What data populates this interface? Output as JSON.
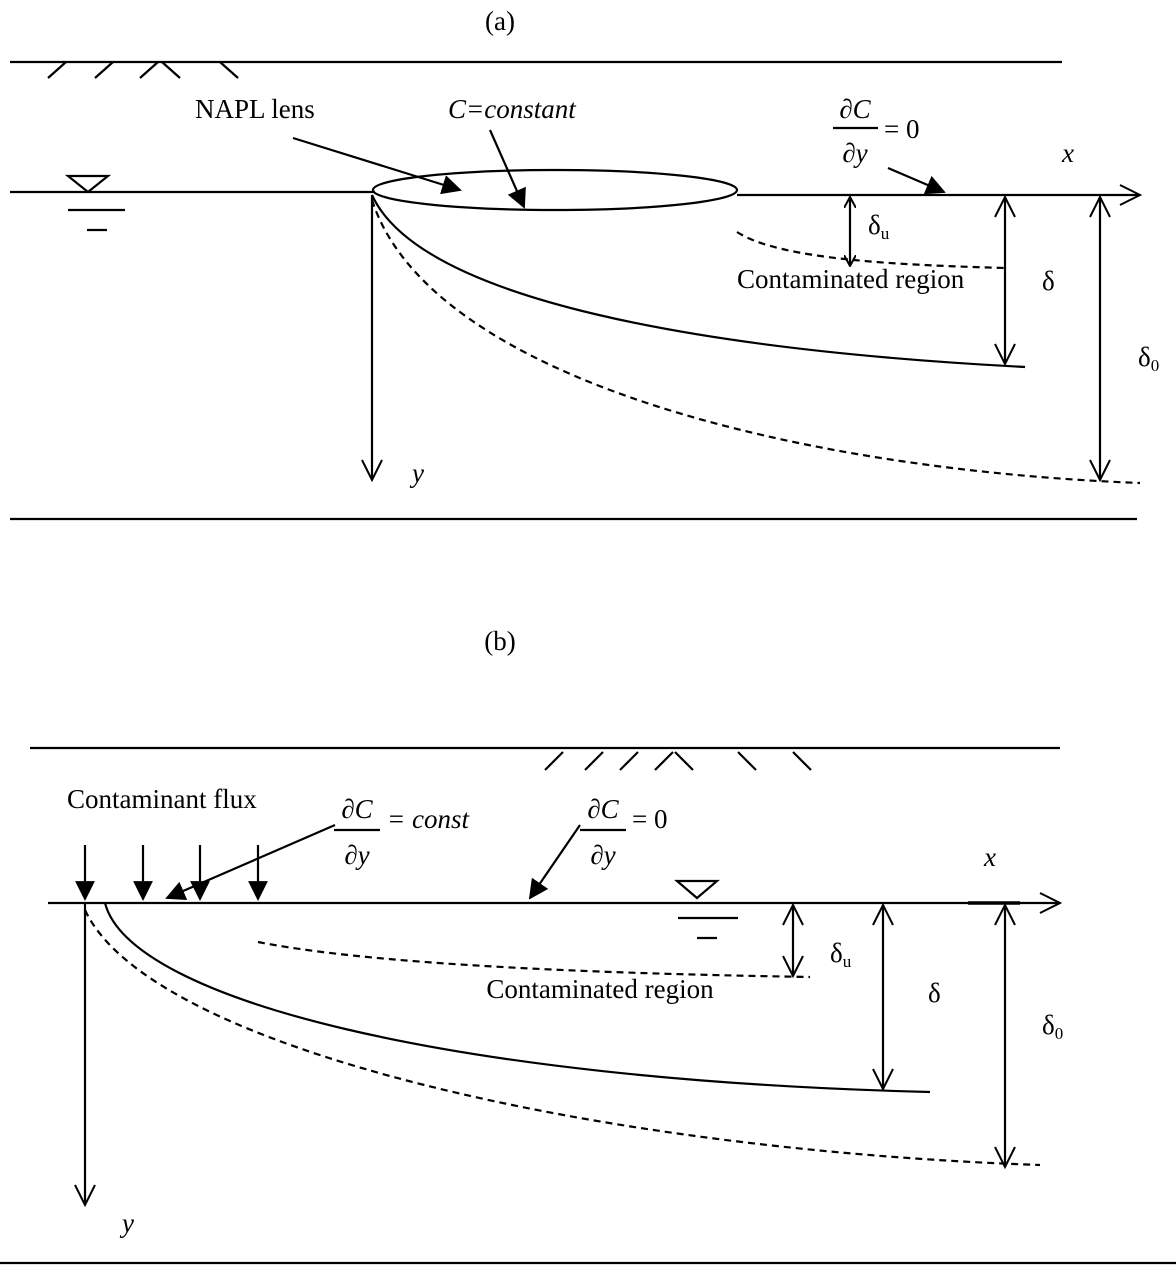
{
  "panels": [
    {
      "label": "(a)",
      "lens_label": "NAPL lens",
      "lens_condition": "C=constant",
      "surface_condition": {
        "numerator": "∂C",
        "denominator": "∂y",
        "rhs": "= 0"
      },
      "x_axis": "x",
      "y_axis": "y",
      "delta_u": {
        "symbol": "δ",
        "subscript": "u"
      },
      "region_label": "Contaminated region",
      "delta": "δ",
      "delta_0": {
        "symbol": "δ",
        "subscript": "0"
      }
    },
    {
      "label": "(b)",
      "flux_label": "Contaminant flux",
      "flux_condition": {
        "numerator": "∂C",
        "denominator": "∂y",
        "rhs": "= const"
      },
      "surface_condition": {
        "numerator": "∂C",
        "denominator": "∂y",
        "rhs": "= 0"
      },
      "x_axis": "x",
      "y_axis": "y",
      "delta_u": {
        "symbol": "δ",
        "subscript": "u"
      },
      "region_label": "Contaminated region",
      "delta": "δ",
      "delta_0": {
        "symbol": "δ",
        "subscript": "0"
      }
    }
  ]
}
